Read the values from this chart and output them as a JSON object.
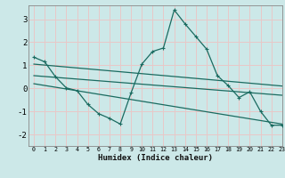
{
  "xlabel": "Humidex (Indice chaleur)",
  "background_color": "#cce8e8",
  "grid_color": "#e8c8c8",
  "line_color": "#1a6b60",
  "xlim": [
    -0.5,
    23
  ],
  "ylim": [
    -2.5,
    3.6
  ],
  "yticks": [
    -2,
    -1,
    0,
    1,
    2,
    3
  ],
  "xticks": [
    0,
    1,
    2,
    3,
    4,
    5,
    6,
    7,
    8,
    9,
    10,
    11,
    12,
    13,
    14,
    15,
    16,
    17,
    18,
    19,
    20,
    21,
    22,
    23
  ],
  "main_line": {
    "x": [
      0,
      1,
      2,
      3,
      4,
      5,
      6,
      7,
      8,
      9,
      10,
      11,
      12,
      13,
      14,
      15,
      16,
      17,
      18,
      19,
      20,
      21,
      22,
      23
    ],
    "y": [
      1.35,
      1.15,
      0.5,
      0.02,
      -0.1,
      -0.7,
      -1.1,
      -1.3,
      -1.55,
      -0.2,
      1.05,
      1.6,
      1.75,
      3.4,
      2.8,
      2.25,
      1.7,
      0.55,
      0.12,
      -0.4,
      -0.15,
      -1.0,
      -1.6,
      -1.6
    ]
  },
  "trend_lines": [
    {
      "x": [
        0,
        23
      ],
      "y": [
        1.05,
        0.1
      ]
    },
    {
      "x": [
        0,
        23
      ],
      "y": [
        0.55,
        -0.3
      ]
    },
    {
      "x": [
        0,
        23
      ],
      "y": [
        0.2,
        -1.55
      ]
    }
  ]
}
